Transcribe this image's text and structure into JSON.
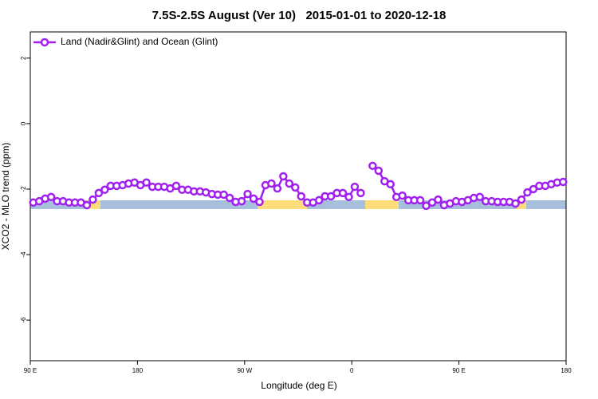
{
  "chart_data": {
    "type": "line",
    "title": "7.5S-2.5S August (Ver 10)   2015-01-01 to 2020-12-18",
    "x_label": "Longitude (deg E)",
    "y_label": "XCO2 - MLO trend (ppm)",
    "xlim": [
      90,
      540
    ],
    "ylim": [
      -7.24,
      2.8
    ],
    "xticks": [
      {
        "value": 90,
        "label": "90 E"
      },
      180,
      {
        "value": 270,
        "label": "90 W"
      },
      {
        "value": 360,
        "label": "0"
      },
      {
        "value": 450,
        "label": "90 E"
      },
      {
        "value": 540,
        "label": "180"
      }
    ],
    "yticks": [
      2,
      0,
      -2,
      -4,
      -6
    ],
    "legend": "top-left",
    "x": [
      92.5,
      97.5,
      102.5,
      107.5,
      112.5,
      117.5,
      122.5,
      127.5,
      132.5,
      137.5,
      142.5,
      147.5,
      152.5,
      157.5,
      162.5,
      167.5,
      172.5,
      177.5,
      182.5,
      187.5,
      192.5,
      197.5,
      202.5,
      207.5,
      212.5,
      217.5,
      222.5,
      227.5,
      232.5,
      237.5,
      242.5,
      247.5,
      252.5,
      257.5,
      262.5,
      267.5,
      272.5,
      277.5,
      282.5,
      287.5,
      292.5,
      297.5,
      302.5,
      307.5,
      312.5,
      317.5,
      322.5,
      327.5,
      332.5,
      337.5,
      342.5,
      347.5,
      352.5,
      357.5,
      362.5,
      367.5,
      372.5,
      377.5,
      382.5,
      387.5,
      392.5,
      397.5,
      402.5,
      407.5,
      412.5,
      417.5,
      422.5,
      427.5,
      432.5,
      437.5,
      442.5,
      447.5,
      452.5,
      457.5,
      462.5,
      467.5,
      472.5,
      477.5,
      482.5,
      487.5,
      492.5,
      497.5,
      502.5,
      507.5,
      512.5,
      517.5,
      522.5,
      527.5,
      532.5,
      537.5
    ],
    "series": [
      {
        "name": "Land (Nadir&Glint) and Ocean (Glint)",
        "color": "#a020f0",
        "values": [
          -2.41,
          -2.37,
          -2.29,
          -2.24,
          -2.37,
          -2.37,
          -2.41,
          -2.41,
          -2.41,
          -2.49,
          -2.32,
          -2.12,
          -2.02,
          -1.9,
          -1.9,
          -1.88,
          -1.83,
          -1.8,
          -1.88,
          -1.8,
          -1.93,
          -1.93,
          -1.93,
          -1.98,
          -1.9,
          -2.02,
          -2.02,
          -2.07,
          -2.07,
          -2.1,
          -2.15,
          -2.17,
          -2.17,
          -2.27,
          -2.39,
          -2.37,
          -2.15,
          -2.29,
          -2.39,
          -1.88,
          -1.83,
          -1.98,
          -1.61,
          -1.83,
          -1.95,
          -2.22,
          -2.41,
          -2.41,
          -2.34,
          -2.22,
          -2.22,
          -2.12,
          -2.12,
          -2.24,
          -1.93,
          -2.12,
          null,
          -1.29,
          -1.44,
          -1.76,
          -1.85,
          -2.24,
          -2.2,
          -2.34,
          -2.34,
          -2.34,
          -2.51,
          -2.41,
          -2.32,
          -2.49,
          -2.44,
          -2.37,
          -2.39,
          -2.34,
          -2.27,
          -2.24,
          -2.37,
          -2.37,
          -2.39,
          -2.39,
          -2.39,
          -2.44,
          -2.32,
          -2.1,
          -2,
          -1.9,
          -1.9,
          -1.85,
          -1.8,
          -1.78
        ]
      }
    ]
  }
}
